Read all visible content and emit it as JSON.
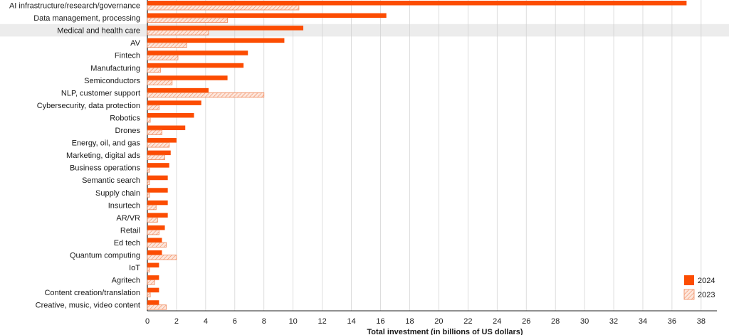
{
  "chart_data": {
    "type": "bar",
    "orientation": "horizontal",
    "title": "",
    "xlabel": "Total investment (in billions of US dollars)",
    "ylabel": "",
    "xlim": [
      0,
      39
    ],
    "xticks": [
      0,
      2,
      4,
      6,
      8,
      10,
      12,
      14,
      16,
      18,
      20,
      22,
      24,
      26,
      28,
      30,
      32,
      34,
      36,
      38
    ],
    "grid": true,
    "legend_position": "bottom-right",
    "highlighted_category": "Medical and health care",
    "colors": {
      "2024": "#fc4c02",
      "2023": "#f5c9b6",
      "grid": "#cfcfcf",
      "highlight": "#ececec"
    },
    "categories": [
      "AI infrastructure/research/governance",
      "Data management, processing",
      "Medical and health care",
      "AV",
      "Fintech",
      "Manufacturing",
      "Semiconductors",
      "NLP, customer support",
      "Cybersecurity, data protection",
      "Robotics",
      "Drones",
      "Energy, oil, and gas",
      "Marketing, digital ads",
      "Business operations",
      "Semantic search",
      "Supply chain",
      "Insurtech",
      "AR/VR",
      "Retail",
      "Ed tech",
      "Quantum computing",
      "IoT",
      "Agritech",
      "Content creation/translation",
      "Creative, music, video content"
    ],
    "series": [
      {
        "name": "2024",
        "style": "solid",
        "values": [
          37.0,
          16.4,
          10.7,
          9.4,
          6.9,
          6.6,
          5.5,
          4.2,
          3.7,
          3.2,
          2.6,
          2.0,
          1.6,
          1.5,
          1.4,
          1.4,
          1.4,
          1.4,
          1.2,
          1.0,
          1.0,
          0.8,
          0.8,
          0.8,
          0.8
        ]
      },
      {
        "name": "2023",
        "style": "hatched",
        "values": [
          10.4,
          5.5,
          4.2,
          2.7,
          2.1,
          0.9,
          1.7,
          8.0,
          0.8,
          0.2,
          1.0,
          1.5,
          1.2,
          0.15,
          0.15,
          0.15,
          0.6,
          0.7,
          0.8,
          1.3,
          2.0,
          0.15,
          0.5,
          0.2,
          1.3
        ]
      }
    ]
  }
}
